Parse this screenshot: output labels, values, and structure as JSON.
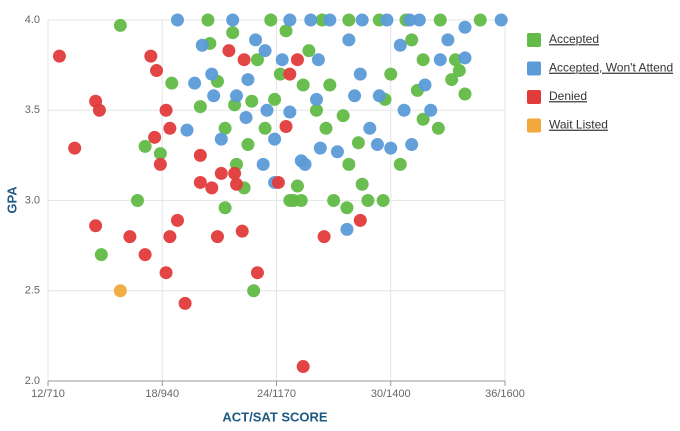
{
  "chart_data": {
    "type": "scatter",
    "x_label": "ACT/SAT SCORE",
    "y_label": "GPA",
    "xlim": [
      12,
      36
    ],
    "xticks": [
      {
        "value": 12,
        "label": "12/710"
      },
      {
        "value": 18,
        "label": "18/940"
      },
      {
        "value": 24,
        "label": "24/1170"
      },
      {
        "value": 30,
        "label": "30/1400"
      },
      {
        "value": 36,
        "label": "36/1600"
      }
    ],
    "ylim": [
      2,
      4
    ],
    "yticks": [
      {
        "value": 2,
        "label": "2.0"
      },
      2.5,
      {
        "value": 3,
        "label": "3.0"
      },
      3.5,
      {
        "value": 4,
        "label": "4.0"
      }
    ],
    "grid": true,
    "legend": "right",
    "series": [
      {
        "name": "Accepted",
        "color": "#62bb46",
        "x": [
          15.8,
          14.8,
          16.7,
          17.1,
          17.9,
          18.5,
          20.0,
          20.4,
          20.5,
          20.9,
          21.3,
          21.3,
          21.9,
          22.3,
          22.8,
          22.5,
          23.4,
          23.7,
          23.9,
          24.2,
          24.5,
          24.9,
          25.3,
          24.7,
          25.1,
          25.4,
          25.7,
          26.4,
          26.6,
          27.0,
          27.7,
          27.8,
          28.3,
          28.5,
          28.8,
          29.6,
          29.7,
          30.0,
          30.5,
          30.8,
          31.1,
          31.4,
          31.7,
          32.5,
          32.6,
          33.2,
          33.4,
          33.9,
          34.7,
          33.6,
          26.8,
          27.5,
          23.0,
          22.7,
          21.7,
          21.8,
          31.7,
          27.8,
          29.4,
          26.1
        ],
        "values": [
          3.97,
          2.7,
          3.0,
          3.3,
          3.26,
          3.65,
          3.52,
          4.0,
          3.87,
          3.66,
          3.4,
          2.96,
          3.2,
          3.07,
          2.5,
          3.31,
          3.4,
          4.0,
          3.56,
          3.7,
          3.94,
          3.0,
          3.0,
          3.0,
          3.08,
          3.64,
          3.83,
          4.0,
          3.4,
          3.0,
          2.96,
          3.2,
          3.32,
          3.09,
          3.0,
          3.0,
          3.56,
          3.7,
          3.2,
          4.0,
          3.89,
          3.61,
          3.78,
          3.4,
          4.0,
          3.67,
          3.78,
          3.59,
          4.0,
          3.72,
          3.64,
          3.47,
          3.78,
          3.55,
          3.93,
          3.53,
          3.45,
          4.0,
          4.0,
          3.5
        ]
      },
      {
        "name": "Accepted, Won't Attend",
        "color": "#5b9bd8",
        "x": [
          18.8,
          19.3,
          19.7,
          20.1,
          20.6,
          21.1,
          21.7,
          21.9,
          22.4,
          22.9,
          23.3,
          23.5,
          23.9,
          24.3,
          24.7,
          24.7,
          25.3,
          25.5,
          25.8,
          26.2,
          26.3,
          26.8,
          27.2,
          27.7,
          27.8,
          28.4,
          28.5,
          28.9,
          29.3,
          29.8,
          29.4,
          30.0,
          30.5,
          30.7,
          31.1,
          31.5,
          31.8,
          32.1,
          32.6,
          33.0,
          33.9,
          33.9,
          35.8,
          31.0,
          28.1,
          23.4,
          22.5,
          23.9,
          20.7,
          26.1
        ],
        "values": [
          4.0,
          3.39,
          3.65,
          3.86,
          3.7,
          3.34,
          4.0,
          3.58,
          3.46,
          3.89,
          3.2,
          3.5,
          3.1,
          3.78,
          4.0,
          3.49,
          3.22,
          3.2,
          4.0,
          3.78,
          3.29,
          4.0,
          3.27,
          2.84,
          3.89,
          3.7,
          4.0,
          3.4,
          3.31,
          4.0,
          3.58,
          3.29,
          3.86,
          3.5,
          3.31,
          4.0,
          3.64,
          3.5,
          3.78,
          3.89,
          3.96,
          3.79,
          4.0,
          4.0,
          3.58,
          3.83,
          3.67,
          3.34,
          3.58,
          3.56
        ]
      },
      {
        "name": "Denied",
        "color": "#e23b3b",
        "x": [
          12.6,
          13.4,
          14.5,
          14.7,
          14.5,
          16.3,
          17.1,
          17.4,
          17.7,
          17.6,
          17.9,
          18.2,
          18.4,
          18.8,
          18.2,
          18.4,
          19.2,
          20.0,
          20.0,
          20.6,
          20.9,
          21.1,
          21.8,
          21.9,
          22.2,
          23.0,
          21.5,
          22.3,
          24.1,
          24.5,
          25.4,
          26.5,
          28.4,
          25.1,
          24.7
        ],
        "values": [
          3.8,
          3.29,
          3.55,
          3.5,
          2.86,
          2.8,
          2.7,
          3.8,
          3.72,
          3.35,
          3.2,
          2.6,
          2.8,
          2.89,
          3.5,
          3.4,
          2.43,
          3.25,
          3.1,
          3.07,
          2.8,
          3.15,
          3.15,
          3.09,
          2.83,
          2.6,
          3.83,
          3.78,
          3.1,
          3.41,
          2.08,
          2.8,
          2.89,
          3.78,
          3.7
        ]
      },
      {
        "name": "Wait Listed",
        "color": "#f2a93b",
        "x": [
          15.8
        ],
        "values": [
          2.5
        ]
      }
    ]
  }
}
